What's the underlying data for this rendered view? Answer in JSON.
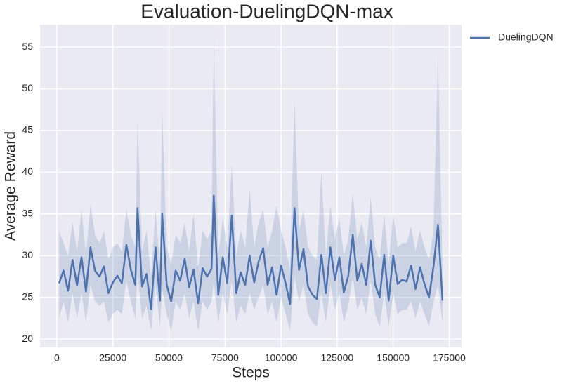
{
  "chart_data": {
    "type": "line",
    "title": "Evaluation-DuelingDQN-max",
    "x_label": "Steps",
    "y_label": "Average Reward",
    "xlim": [
      -7500,
      180500
    ],
    "ylim": [
      19,
      57.7
    ],
    "xticks": [
      0,
      25000,
      50000,
      75000,
      100000,
      125000,
      150000,
      175000
    ],
    "yticks": [
      20,
      25,
      30,
      35,
      40,
      45,
      50,
      55
    ],
    "grid": true,
    "legend": "outside upper right",
    "x": [
      1000,
      3000,
      5000,
      7000,
      9000,
      11000,
      13000,
      15000,
      17000,
      19000,
      21000,
      23000,
      25000,
      27000,
      29000,
      31000,
      33000,
      35000,
      36000,
      38000,
      40000,
      42000,
      44000,
      46000,
      47000,
      49000,
      51000,
      53000,
      55000,
      57000,
      59000,
      61000,
      63000,
      65000,
      67000,
      69000,
      70000,
      72000,
      74000,
      76000,
      78000,
      80000,
      82000,
      84000,
      86000,
      88000,
      90000,
      92000,
      94000,
      96000,
      98000,
      100000,
      102000,
      104000,
      106000,
      108000,
      110000,
      112000,
      114000,
      116000,
      118000,
      120000,
      122000,
      124000,
      126000,
      128000,
      130000,
      132000,
      134000,
      136000,
      138000,
      140000,
      142000,
      144000,
      146000,
      148000,
      150000,
      152000,
      154000,
      156000,
      158000,
      160000,
      162000,
      164000,
      166000,
      168000,
      170000,
      172000
    ],
    "series": [
      {
        "name": "DuelingDQN",
        "color": "#4c72b0",
        "values": [
          26.7,
          28.2,
          25.8,
          29.5,
          26.4,
          29.8,
          25.7,
          31.0,
          28.2,
          27.5,
          28.7,
          25.5,
          26.8,
          27.6,
          26.7,
          31.3,
          28.3,
          26.5,
          35.7,
          26.3,
          27.8,
          23.6,
          31.0,
          24.6,
          35.0,
          26.5,
          24.5,
          28.2,
          27.0,
          29.6,
          26.2,
          28.3,
          24.3,
          28.5,
          27.5,
          28.4,
          37.2,
          25.3,
          29.8,
          26.7,
          34.8,
          25.5,
          28.0,
          26.5,
          30.0,
          26.8,
          29.3,
          30.9,
          26.5,
          28.6,
          25.3,
          28.8,
          26.7,
          24.2,
          35.7,
          28.3,
          30.8,
          26.3,
          25.3,
          24.8,
          30.1,
          25.5,
          31.0,
          27.1,
          29.8,
          25.6,
          27.6,
          32.5,
          27.0,
          29.0,
          26.5,
          31.8,
          26.5,
          25.0,
          30.1,
          24.6,
          30.0,
          26.6,
          27.1,
          26.9,
          28.8,
          26.0,
          28.6,
          26.6,
          25.0,
          28.7,
          33.7,
          24.6
        ],
        "band_upper": [
          33,
          31.5,
          30,
          34,
          30.5,
          35.5,
          30,
          36.2,
          32.5,
          31.5,
          33,
          29.5,
          31,
          31.5,
          30.5,
          35.5,
          32.5,
          31,
          46.3,
          30.5,
          33,
          27.5,
          35.5,
          29,
          47.2,
          31,
          29,
          32.5,
          31.5,
          34,
          30.5,
          35,
          28.5,
          33,
          32,
          33,
          56,
          30,
          34.5,
          31,
          41,
          30,
          33,
          31,
          38,
          31,
          34,
          35.5,
          31,
          33,
          36,
          33,
          31,
          28.5,
          48.7,
          33,
          35.5,
          31,
          30,
          29.5,
          40,
          30,
          36,
          32,
          34.5,
          30,
          32,
          37.5,
          32,
          34,
          31,
          37,
          31,
          29.5,
          35,
          29,
          35,
          31,
          31.5,
          31.5,
          33.5,
          30.5,
          33,
          31,
          29.5,
          33,
          54.2,
          28.5
        ],
        "band_lower": [
          22.5,
          24.5,
          22,
          25.5,
          22.5,
          25.5,
          22,
          26.5,
          24.5,
          24,
          24.5,
          22,
          23,
          23.5,
          23,
          27,
          24.5,
          22.5,
          28,
          22.5,
          24,
          21,
          26.5,
          21.5,
          26,
          23,
          21,
          24.5,
          23.5,
          25.5,
          22.5,
          24.5,
          21,
          24.5,
          23.5,
          24.5,
          27,
          22,
          25.5,
          23,
          27,
          22,
          24,
          23,
          25.5,
          23.5,
          25,
          26.5,
          23,
          24.5,
          22,
          25,
          23,
          21,
          27.5,
          24.5,
          26.5,
          23,
          22,
          21.5,
          25.5,
          22,
          26.5,
          23.5,
          25.5,
          22,
          24,
          27.5,
          23.5,
          25,
          23,
          27,
          23,
          21.5,
          25.5,
          21.5,
          25.5,
          23,
          23.5,
          23.5,
          24.5,
          22.5,
          24.5,
          23,
          21.5,
          24.5,
          26.5,
          22
        ]
      }
    ]
  }
}
